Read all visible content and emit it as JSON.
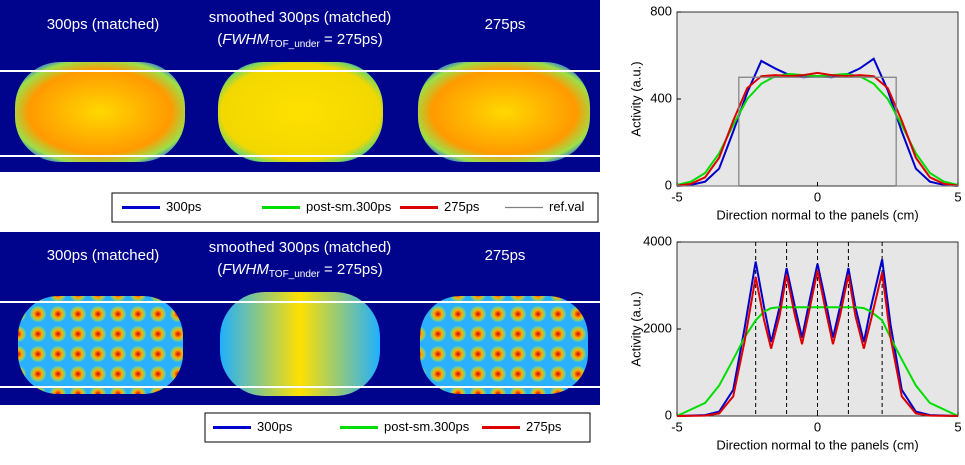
{
  "image_panels": [
    {
      "labels": {
        "left": "300ps (matched)",
        "middle": "smoothed 300ps (matched)",
        "middle_note": {
          "open": "(",
          "italic": "FWHM",
          "sub": "TOF_under",
          "rest": " = 275ps)"
        },
        "right": "275ps"
      }
    },
    {
      "labels": {
        "left": "300ps (matched)",
        "middle": "smoothed 300ps (matched)",
        "middle_note": {
          "open": "(",
          "italic": "FWHM",
          "sub": "TOF_under",
          "rest": " = 275ps)"
        },
        "right": "275ps"
      }
    }
  ],
  "chart_data": [
    {
      "type": "line",
      "x_label": "Direction normal to the panels (cm)",
      "y_label": "Activity (a.u.)",
      "xlim": [
        -5,
        5
      ],
      "xticks": [
        -5,
        0,
        5
      ],
      "ylim": [
        0,
        800
      ],
      "yticks": [
        0,
        400,
        800
      ],
      "x": [
        -5,
        -4.5,
        -4,
        -3.5,
        -3,
        -2.5,
        -2,
        -1.5,
        -1,
        -0.5,
        0,
        0.5,
        1,
        1.5,
        2,
        2.5,
        3,
        3.5,
        4,
        4.5,
        5
      ],
      "series": [
        {
          "name": "300ps",
          "color": "#0000cc",
          "values": [
            0,
            5,
            20,
            80,
            250,
            430,
            575,
            540,
            510,
            500,
            505,
            500,
            510,
            540,
            585,
            440,
            250,
            80,
            20,
            5,
            0
          ]
        },
        {
          "name": "post-sm.300ps",
          "color": "#00dd00",
          "values": [
            5,
            20,
            60,
            150,
            280,
            400,
            470,
            505,
            515,
            510,
            505,
            510,
            515,
            505,
            470,
            400,
            280,
            150,
            60,
            20,
            5
          ]
        },
        {
          "name": "275ps",
          "color": "#dd0000",
          "values": [
            2,
            10,
            40,
            130,
            300,
            450,
            505,
            510,
            505,
            510,
            520,
            510,
            505,
            510,
            505,
            450,
            300,
            130,
            40,
            10,
            2
          ]
        },
        {
          "name": "ref.val",
          "color": "#808080",
          "x": [
            -5,
            -2.8,
            -2.8,
            2.8,
            2.8,
            5
          ],
          "values": [
            0,
            0,
            500,
            500,
            0,
            0
          ]
        }
      ]
    },
    {
      "type": "line",
      "x_label": "Direction normal to the panels (cm)",
      "y_label": "Activity (a.u.)",
      "xlim": [
        -5,
        5
      ],
      "xticks": [
        -5,
        0,
        5
      ],
      "ylim": [
        0,
        4000
      ],
      "yticks": [
        0,
        2000,
        4000
      ],
      "vlines": [
        -2.2,
        -1.1,
        0,
        1.1,
        2.3
      ],
      "x": [
        -5,
        -4,
        -3.5,
        -3,
        -2.6,
        -2.2,
        -1.9,
        -1.65,
        -1.35,
        -1.1,
        -0.8,
        -0.55,
        -0.3,
        0,
        0.3,
        0.55,
        0.8,
        1.1,
        1.35,
        1.65,
        1.9,
        2.3,
        2.6,
        3,
        3.5,
        4,
        5
      ],
      "series": [
        {
          "name": "300ps",
          "color": "#0000cc",
          "values": [
            0,
            20,
            100,
            600,
            2000,
            3550,
            2500,
            1700,
            2500,
            3400,
            2500,
            1800,
            2600,
            3500,
            2600,
            1800,
            2500,
            3400,
            2500,
            1700,
            2500,
            3600,
            2100,
            600,
            100,
            20,
            0
          ]
        },
        {
          "name": "post-sm.300ps",
          "color": "#00dd00",
          "values": [
            0,
            300,
            700,
            1300,
            1800,
            2200,
            2400,
            2480,
            2500,
            2500,
            2500,
            2500,
            2500,
            2500,
            2500,
            2500,
            2500,
            2500,
            2500,
            2480,
            2400,
            2200,
            1800,
            1300,
            700,
            300,
            0
          ]
        },
        {
          "name": "275ps",
          "color": "#dd0000",
          "values": [
            0,
            10,
            60,
            450,
            1700,
            3200,
            2200,
            1550,
            2300,
            3250,
            2300,
            1650,
            2400,
            3350,
            2400,
            1650,
            2300,
            3250,
            2300,
            1550,
            2200,
            3300,
            1800,
            450,
            60,
            10,
            0
          ]
        }
      ]
    }
  ]
}
